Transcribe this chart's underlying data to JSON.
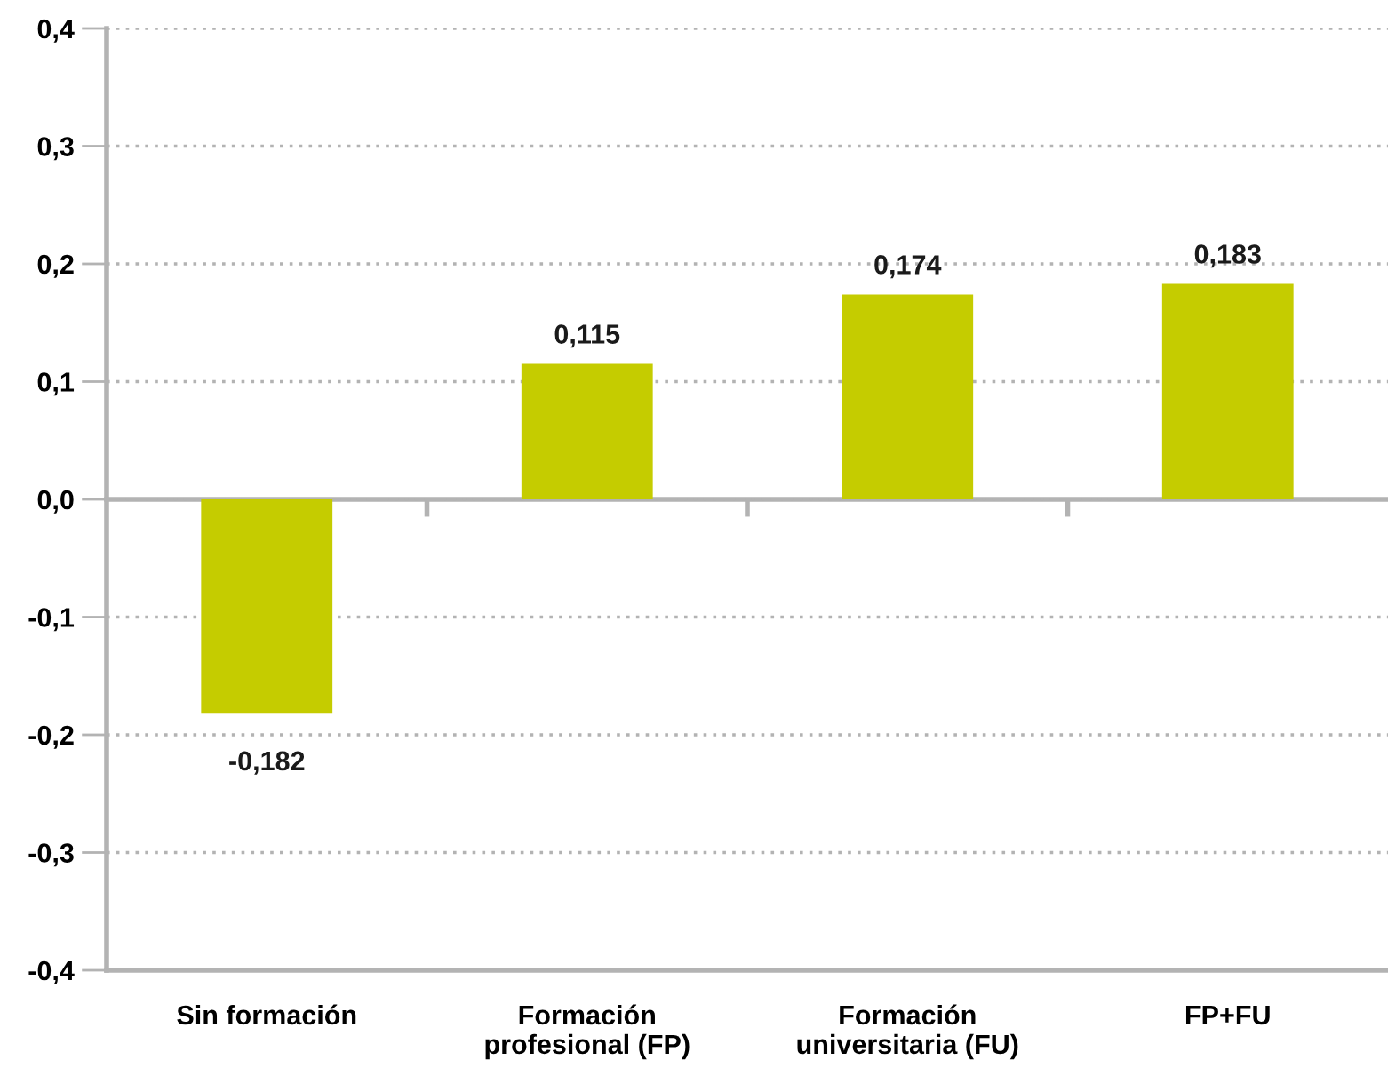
{
  "chart_data": {
    "type": "bar",
    "categories": [
      "Sin formación",
      "Formación\nprofesional (FP)",
      "Formación\nuniversitaria (FU)",
      "FP+FU"
    ],
    "values": [
      -0.182,
      0.115,
      0.174,
      0.183
    ],
    "color": "#c5cc00",
    "value_labels": [
      "-0,182",
      "0,115",
      "0,174",
      "0,183"
    ],
    "ylim": [
      -0.4,
      0.4
    ],
    "yticks": [
      {
        "value": -0.4,
        "label": "-0,4"
      },
      {
        "value": -0.3,
        "label": "-0,3"
      },
      {
        "value": -0.2,
        "label": "-0,2"
      },
      {
        "value": -0.1,
        "label": "-0,1"
      },
      {
        "value": 0,
        "label": "0,0"
      },
      {
        "value": 0.1,
        "label": "0,1"
      },
      {
        "value": 0.2,
        "label": "0,2"
      },
      {
        "value": 0.3,
        "label": "0,3"
      },
      {
        "value": 0.4,
        "label": "0,4"
      }
    ],
    "grid": "y"
  }
}
